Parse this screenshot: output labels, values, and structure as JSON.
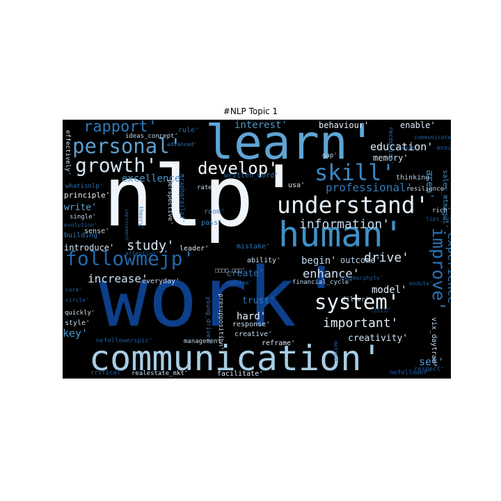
{
  "title": "#NLP Topic 1",
  "chart_data": {
    "type": "wordcloud",
    "title": "#NLP Topic 1",
    "background": "#000000",
    "colormap": "Blues",
    "words": [
      {
        "text": "work'",
        "weight": 1.0,
        "color": "#0d3f8a",
        "rot": 0
      },
      {
        "text": "nlp'",
        "weight": 0.98,
        "color": "#f0f5fb",
        "rot": 0
      },
      {
        "text": "communication'",
        "weight": 0.62,
        "color": "#a8cde5",
        "rot": 0
      },
      {
        "text": "learn'",
        "weight": 0.6,
        "color": "#5fa4d4",
        "rot": 0
      },
      {
        "text": "human'",
        "weight": 0.46,
        "color": "#4191c6",
        "rot": 0
      },
      {
        "text": "understand'",
        "weight": 0.4,
        "color": "#e4eef8",
        "rot": 0
      },
      {
        "text": "followmejp'",
        "weight": 0.33,
        "color": "#2169ad",
        "rot": 0
      },
      {
        "text": "personal'",
        "weight": 0.33,
        "color": "#5d9fd0",
        "rot": 0
      },
      {
        "text": "skill'",
        "weight": 0.33,
        "color": "#3b88c4",
        "rot": 0
      },
      {
        "text": "system'",
        "weight": 0.31,
        "color": "#e9f1fa",
        "rot": 0
      },
      {
        "text": "improve'",
        "weight": 0.3,
        "color": "#2a73b5",
        "rot": 90
      },
      {
        "text": "growth'",
        "weight": 0.28,
        "color": "#d5e5f4",
        "rot": 0
      },
      {
        "text": "develop'",
        "weight": 0.27,
        "color": "#f3f7fc",
        "rot": 0
      },
      {
        "text": "rapport'",
        "weight": 0.25,
        "color": "#2e78b8",
        "rot": 0
      },
      {
        "text": "important'",
        "weight": 0.2,
        "color": "#dfeaf6",
        "rot": 0
      },
      {
        "text": "information'",
        "weight": 0.19,
        "color": "#c6dcef",
        "rot": 0
      },
      {
        "text": "study'",
        "weight": 0.19,
        "color": "#d7e6f4",
        "rot": 0
      },
      {
        "text": "professional'",
        "weight": 0.18,
        "color": "#2f7ab9",
        "rot": 0
      },
      {
        "text": "experience'",
        "weight": 0.17,
        "color": "#2a73b5",
        "rot": 90
      },
      {
        "text": "drive'",
        "weight": 0.16,
        "color": "#d9e7f5",
        "rot": 0
      },
      {
        "text": "enhance'",
        "weight": 0.16,
        "color": "#cfe1f2",
        "rot": 0
      },
      {
        "text": "education'",
        "weight": 0.15,
        "color": "#e3edf8",
        "rot": 0
      },
      {
        "text": "increase'",
        "weight": 0.15,
        "color": "#cfe1f2",
        "rot": 0
      },
      {
        "text": "interest'",
        "weight": 0.14,
        "color": "#4d96ca",
        "rot": 0
      },
      {
        "text": "excellence'",
        "weight": 0.14,
        "color": "#4a94c9",
        "rot": 0
      },
      {
        "text": "area'",
        "weight": 0.14,
        "color": "#3f8ec5",
        "rot": 90
      },
      {
        "text": "model'",
        "weight": 0.13,
        "color": "#e5eef8",
        "rot": 0
      },
      {
        "text": "creativity'",
        "weight": 0.13,
        "color": "#d2e3f3",
        "rot": 0
      },
      {
        "text": "hard'",
        "weight": 0.13,
        "color": "#e6f0f9",
        "rot": 0
      },
      {
        "text": "behaviour'",
        "weight": 0.12,
        "color": "#ebf3fb",
        "rot": 0
      },
      {
        "text": "enable'",
        "weight": 0.12,
        "color": "#dce9f6",
        "rot": 0
      },
      {
        "text": "memory'",
        "weight": 0.12,
        "color": "#cee0f2",
        "rot": 0
      },
      {
        "text": "write'",
        "weight": 0.12,
        "color": "#5fa4d4",
        "rot": 0
      },
      {
        "text": "begin'",
        "weight": 0.12,
        "color": "#c3d9ee",
        "rot": 0
      },
      {
        "text": "outcome'",
        "weight": 0.12,
        "color": "#b8d4ea",
        "rot": 0
      },
      {
        "text": "create'",
        "weight": 0.12,
        "color": "#2a73b5",
        "rot": 0
      },
      {
        "text": "trust'",
        "weight": 0.12,
        "color": "#2f7ab9",
        "rot": 0
      },
      {
        "text": "key'",
        "weight": 0.12,
        "color": "#4a94c9",
        "rot": 0
      },
      {
        "text": "set'",
        "weight": 0.12,
        "color": "#4a94c9",
        "rot": 0
      },
      {
        "text": "introduce'",
        "weight": 0.11,
        "color": "#d9e7f5",
        "rot": 0
      },
      {
        "text": "principle'",
        "weight": 0.1,
        "color": "#e6f0f9",
        "rot": 0
      },
      {
        "text": "thinking'",
        "weight": 0.1,
        "color": "#b0cfe7",
        "rot": 0
      },
      {
        "text": "usa'",
        "weight": 0.1,
        "color": "#d6e5f4",
        "rot": 0
      },
      {
        "text": "building'",
        "weight": 0.1,
        "color": "#2f78b8",
        "rot": 0
      },
      {
        "text": "response'",
        "weight": 0.09,
        "color": "#c9ddf0",
        "rot": 0
      },
      {
        "text": "creative'",
        "weight": 0.09,
        "color": "#c9ddf0",
        "rot": 0
      },
      {
        "text": "reframe'",
        "weight": 0.09,
        "color": "#d8e6f4",
        "rot": 0
      },
      {
        "text": "facilitate'",
        "weight": 0.09,
        "color": "#dbe8f5",
        "rot": 0
      },
      {
        "text": "realestate_mkt'",
        "weight": 0.09,
        "color": "#cddff1",
        "rot": 0
      },
      {
        "text": "ability'",
        "weight": 0.09,
        "color": "#d0e2f2",
        "rot": 0
      },
      {
        "text": "everyday'",
        "weight": 0.09,
        "color": "#c7dbef",
        "rot": 0
      },
      {
        "text": "sense'",
        "weight": 0.09,
        "color": "#c7dbef",
        "rot": 0
      },
      {
        "text": "leader'",
        "weight": 0.09,
        "color": "#d8e6f4",
        "rot": 0
      },
      {
        "text": "single'",
        "weight": 0.09,
        "color": "#c3d9ee",
        "rot": 0
      },
      {
        "text": "style'",
        "weight": 0.09,
        "color": "#c3d9ee",
        "rot": 0
      },
      {
        "text": "quickly'",
        "weight": 0.08,
        "color": "#c9ddf0",
        "rot": 0
      },
      {
        "text": "mistake'",
        "weight": 0.09,
        "color": "#2a73b5",
        "rot": 0
      },
      {
        "text": "room'",
        "weight": 0.09,
        "color": "#3b86c2",
        "rot": 0
      },
      {
        "text": "pass'",
        "weight": 0.09,
        "color": "#3b86c2",
        "rot": 0
      },
      {
        "text": "written_word'",
        "weight": 0.09,
        "color": "#2a73b5",
        "rot": 0
      },
      {
        "text": "rate'",
        "weight": 0.08,
        "color": "#c7dbef",
        "rot": 0
      },
      {
        "text": "whatisnlp'",
        "weight": 0.08,
        "color": "#2a73b5",
        "rot": 0
      },
      {
        "text": "ideas_concept'",
        "weight": 0.08,
        "color": "#c3d9ee",
        "rot": 0
      },
      {
        "text": "rule'",
        "weight": 0.09,
        "color": "#2a73b5",
        "rot": 0
      },
      {
        "text": "advanced'",
        "weight": 0.07,
        "color": "#2a73b5",
        "rot": 0
      },
      {
        "text": "gap'",
        "weight": 0.08,
        "color": "#c7dbef",
        "rot": 0
      },
      {
        "text": "recognize'",
        "weight": 0.08,
        "color": "#2a73b5",
        "rot": 90
      },
      {
        "text": "sales_mtmogul'",
        "weight": 0.09,
        "color": "#3f8ec5",
        "rot": 90
      },
      {
        "text": "effectively'",
        "weight": 0.08,
        "color": "#d0e2f2",
        "rot": 90
      },
      {
        "text": "graphgrailai'",
        "weight": 0.08,
        "color": "#2a73b5",
        "rot": 90
      },
      {
        "text": "perspective'",
        "weight": 0.08,
        "color": "#c7dbef",
        "rot": 90
      },
      {
        "text": "theory'",
        "weight": 0.07,
        "color": "#2a73b5",
        "rot": 90
      },
      {
        "text": "improvement'",
        "weight": 0.07,
        "color": "#1f5fa6",
        "rot": 90
      },
      {
        "text": "young_driver'",
        "weight": 0.08,
        "color": "#2a73b5",
        "rot": 90
      },
      {
        "text": "presupposition'",
        "weight": 0.08,
        "color": "#c7dbef",
        "rot": 90
      },
      {
        "text": "method'",
        "weight": 0.07,
        "color": "#1f5fa6",
        "rot": 90
      },
      {
        "text": "vix_daytrad'",
        "weight": 0.08,
        "color": "#c7dbef",
        "rot": 90
      },
      {
        "text": "evolution'",
        "weight": 0.07,
        "color": "#1f5fa6",
        "rot": 0
      },
      {
        "text": "attention'",
        "weight": 0.07,
        "color": "#1f5fa6",
        "rot": 0
      },
      {
        "text": "core'",
        "weight": 0.07,
        "color": "#1f5fa6",
        "rot": 0
      },
      {
        "text": "circle'",
        "weight": 0.07,
        "color": "#1f5fa6",
        "rot": 0
      },
      {
        "text": "nefollowerspic'",
        "weight": 0.08,
        "color": "#1f5fa6",
        "rot": 0
      },
      {
        "text": "management'",
        "weight": 0.07,
        "color": "#c3d9ee",
        "rot": 0
      },
      {
        "text": "critical'",
        "weight": 0.07,
        "color": "#1f5fa6",
        "rot": 0
      },
      {
        "text": "combine'",
        "weight": 0.07,
        "color": "#1f5fa6",
        "rot": 0
      },
      {
        "text": "financial_cycle'",
        "weight": 0.07,
        "color": "#c3d9ee",
        "rot": 0
      },
      {
        "text": "filter'",
        "weight": 0.07,
        "color": "#c3d9ee",
        "rot": 0
      },
      {
        "text": "andymurphytv'",
        "weight": 0.07,
        "color": "#1f5fa6",
        "rot": 0
      },
      {
        "text": "nefollower'",
        "weight": 0.08,
        "color": "#1f5fa6",
        "rot": 0
      },
      {
        "text": "respect'",
        "weight": 0.07,
        "color": "#1f5fa6",
        "rot": 0
      },
      {
        "text": "tips_nyse'",
        "weight": 0.07,
        "color": "#1f5fa6",
        "rot": 0
      },
      {
        "text": "rich'",
        "weight": 0.07,
        "color": "#c3d9ee",
        "rot": 0
      },
      {
        "text": "resilience'",
        "weight": 0.07,
        "color": "#c3d9ee",
        "rot": 0
      },
      {
        "text": "aware'",
        "weight": 0.07,
        "color": "#1f5fa6",
        "rot": 0
      },
      {
        "text": "avoid'",
        "weight": 0.07,
        "color": "#1f5fa6",
        "rot": 0
      },
      {
        "text": "communicate'",
        "weight": 0.07,
        "color": "#1f5fa6",
        "rot": 0
      },
      {
        "text": "module'",
        "weight": 0.07,
        "color": "#1f5fa6",
        "rot": 0
      },
      {
        "text": "□□□□_□□□'",
        "weight": 0.07,
        "color": "#c3d9ee",
        "rot": 0
      },
      {
        "text": "□□□□□'",
        "weight": 0.07,
        "color": "#1f5fa6",
        "rot": 0
      }
    ]
  }
}
